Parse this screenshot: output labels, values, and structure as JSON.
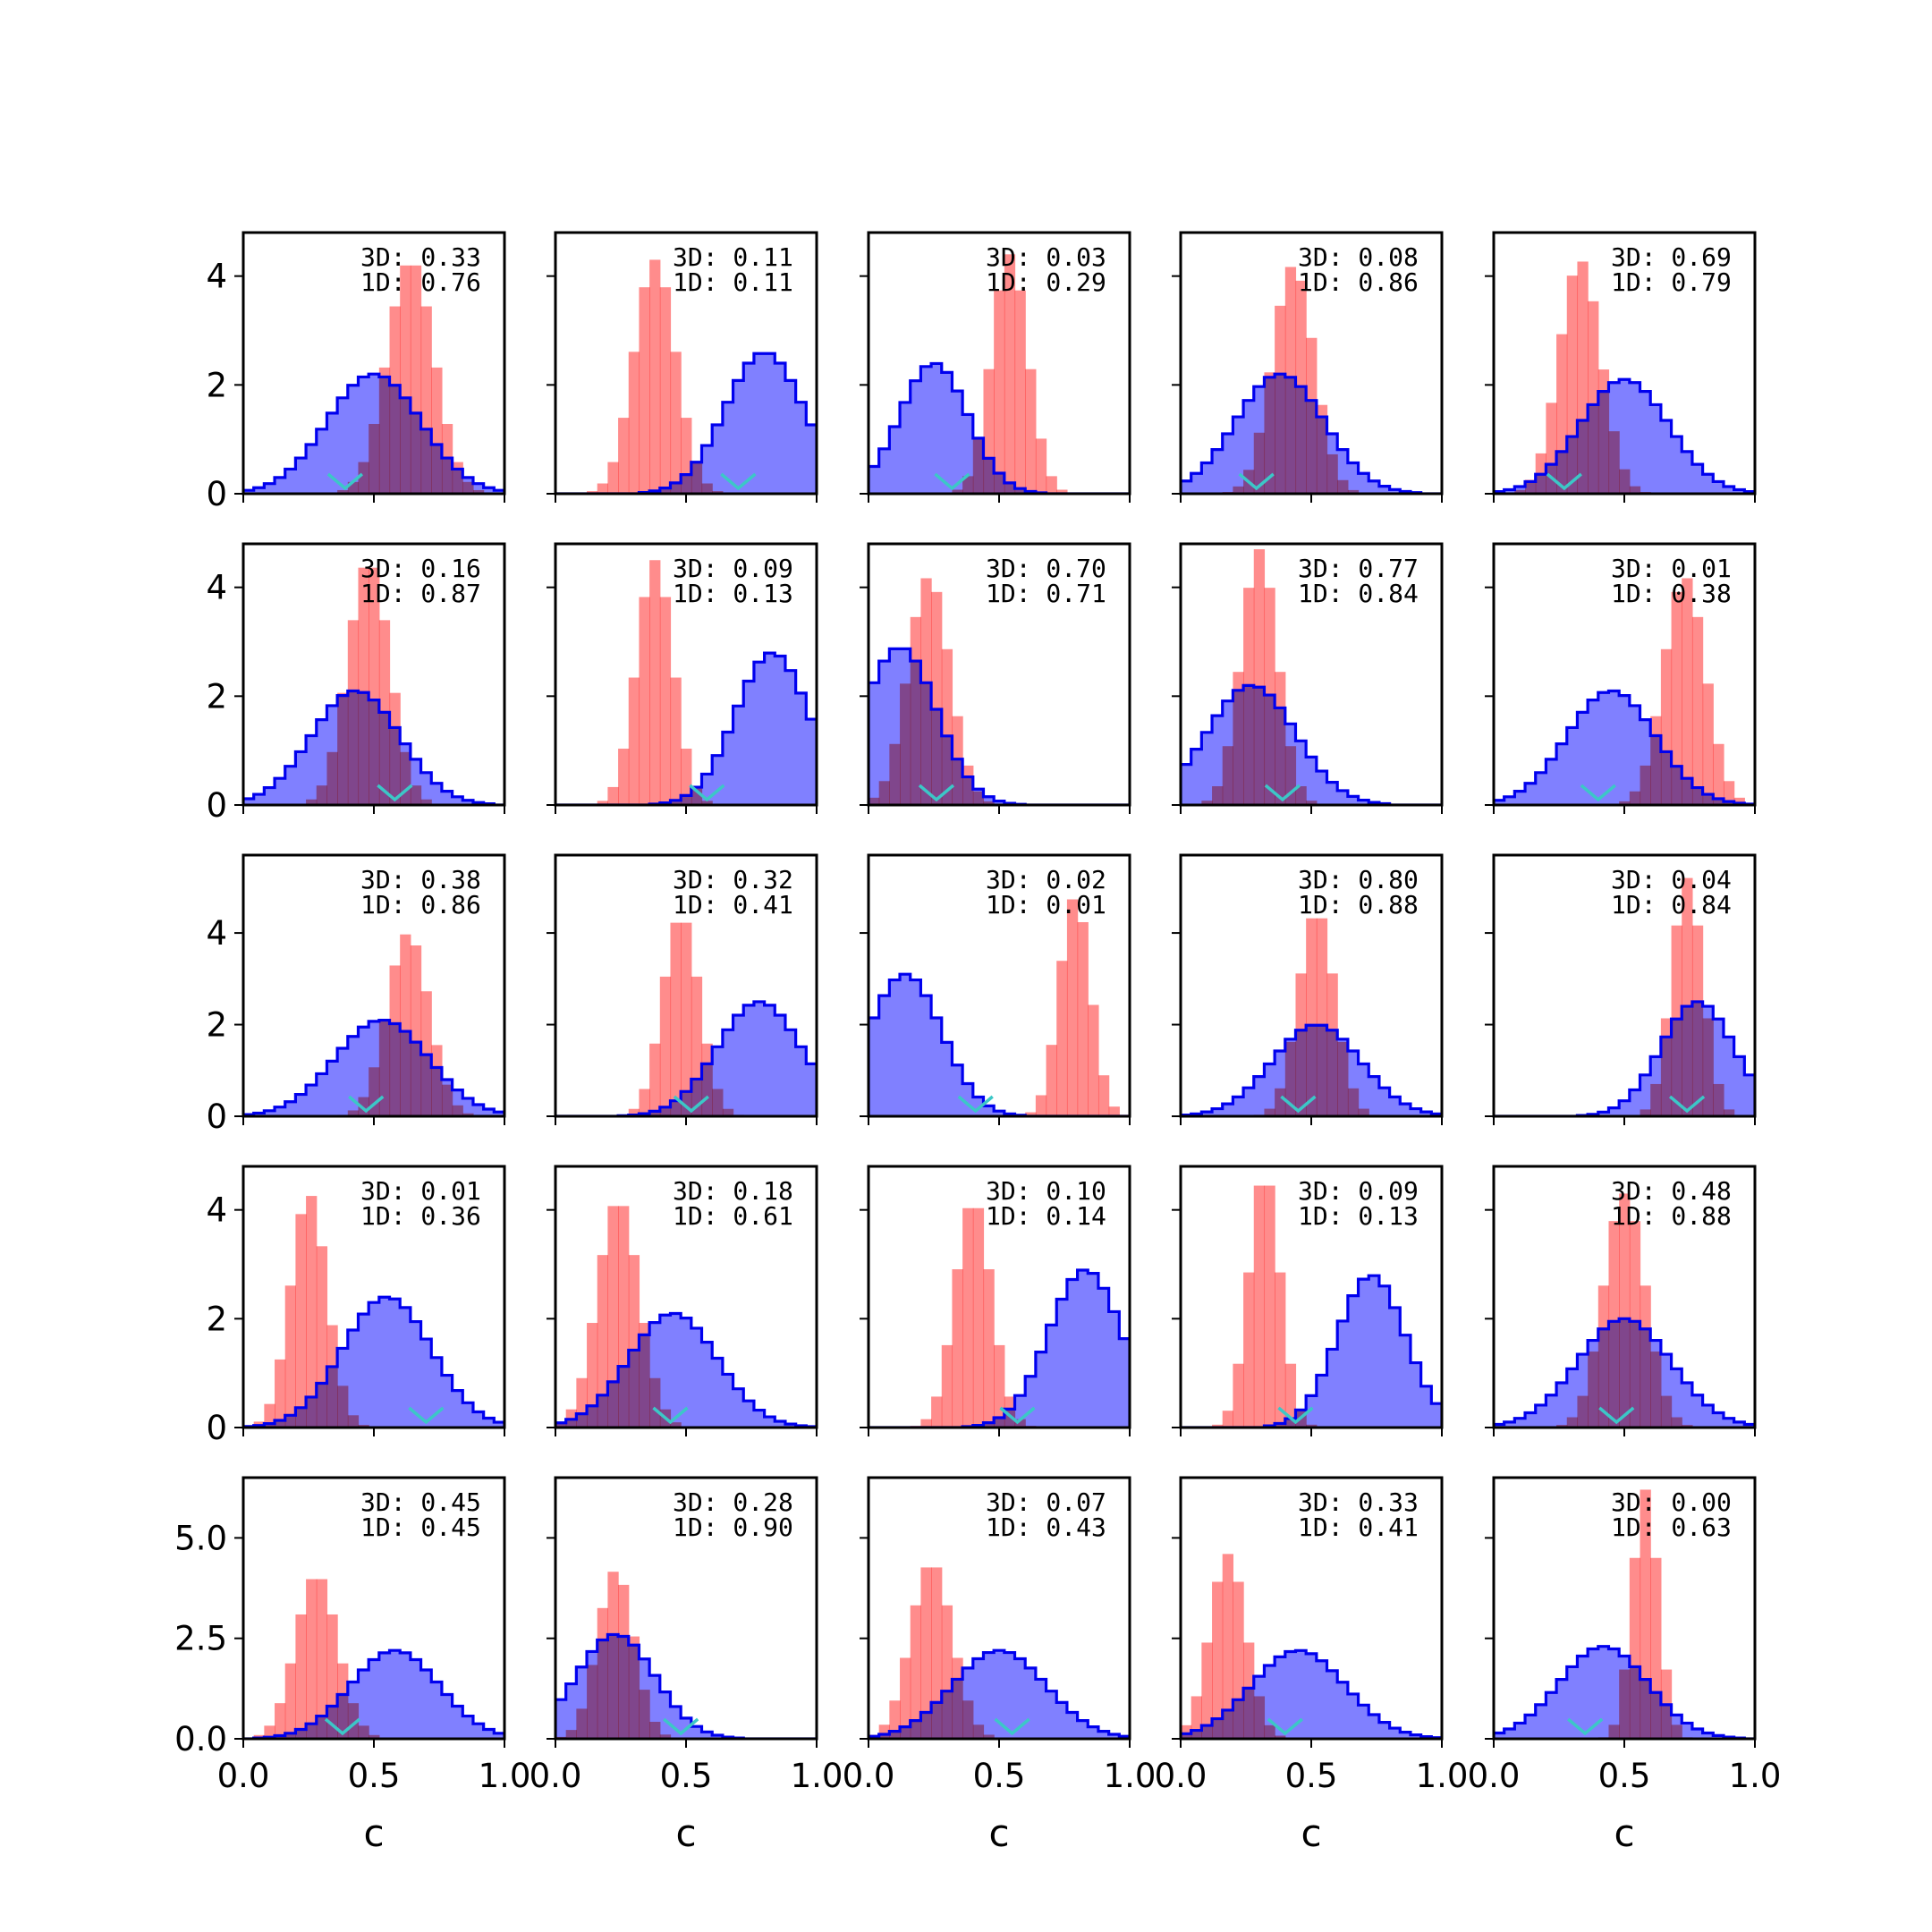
{
  "colors": {
    "blue_fill": "#8080ff",
    "blue_edge": "#0000ee",
    "red_fill": "#ff7f7f",
    "marker": "#3cc7c7",
    "frame": "#000000"
  },
  "chart_data": {
    "type": "histogram-grid",
    "rows": 5,
    "cols": 5,
    "xlabel": "c",
    "xlim": [
      0,
      1
    ],
    "xticks": [
      "0.0",
      "0.5",
      "1.0"
    ],
    "row_axes": [
      {
        "ylim": [
          0,
          4.8
        ],
        "yticks": [
          0,
          2,
          4
        ],
        "ytick_labels": [
          "0",
          "2",
          "4"
        ]
      },
      {
        "ylim": [
          0,
          4.8
        ],
        "yticks": [
          0,
          2,
          4
        ],
        "ytick_labels": [
          "0",
          "2",
          "4"
        ]
      },
      {
        "ylim": [
          0,
          5.7
        ],
        "yticks": [
          0,
          2,
          4
        ],
        "ytick_labels": [
          "0",
          "2",
          "4"
        ]
      },
      {
        "ylim": [
          0,
          4.8
        ],
        "yticks": [
          0,
          2,
          4
        ],
        "ytick_labels": [
          "0",
          "2",
          "4"
        ]
      },
      {
        "ylim": [
          0,
          6.5
        ],
        "yticks": [
          0,
          2.5,
          5.0
        ],
        "ytick_labels": [
          "0.0",
          "2.5",
          "5.0"
        ]
      }
    ],
    "panels": [
      {
        "label3d": "3D: 0.33",
        "label1d": "1D: 0.76",
        "blue": {
          "mu": 0.5,
          "sd": 0.18,
          "peak": 2.2
        },
        "red": {
          "mu": 0.64,
          "sd": 0.09,
          "peak": 4.3
        },
        "marker": 0.39
      },
      {
        "label3d": "3D: 0.11",
        "label1d": "1D: 0.11",
        "blue": {
          "mu": 0.8,
          "sd": 0.15,
          "peak": 2.6
        },
        "red": {
          "mu": 0.38,
          "sd": 0.08,
          "peak": 4.3
        },
        "marker": 0.7
      },
      {
        "label3d": "3D: 0.03",
        "label1d": "1D: 0.29",
        "blue": {
          "mu": 0.25,
          "sd": 0.13,
          "peak": 2.4
        },
        "red": {
          "mu": 0.54,
          "sd": 0.07,
          "peak": 4.4
        },
        "marker": 0.32
      },
      {
        "label3d": "3D: 0.08",
        "label1d": "1D: 0.86",
        "blue": {
          "mu": 0.38,
          "sd": 0.17,
          "peak": 2.2
        },
        "red": {
          "mu": 0.43,
          "sd": 0.08,
          "peak": 4.2
        },
        "marker": 0.29
      },
      {
        "label3d": "3D: 0.69",
        "label1d": "1D: 0.79",
        "blue": {
          "mu": 0.5,
          "sd": 0.17,
          "peak": 2.1
        },
        "red": {
          "mu": 0.33,
          "sd": 0.08,
          "peak": 4.3
        },
        "marker": 0.27
      },
      {
        "label3d": "3D: 0.16",
        "label1d": "1D: 0.87",
        "blue": {
          "mu": 0.43,
          "sd": 0.17,
          "peak": 2.1
        },
        "red": {
          "mu": 0.48,
          "sd": 0.08,
          "peak": 4.5
        },
        "marker": 0.58
      },
      {
        "label3d": "3D: 0.09",
        "label1d": "1D: 0.13",
        "blue": {
          "mu": 0.83,
          "sd": 0.14,
          "peak": 2.8
        },
        "red": {
          "mu": 0.38,
          "sd": 0.07,
          "peak": 4.5
        },
        "marker": 0.58
      },
      {
        "label3d": "3D: 0.70",
        "label1d": "1D: 0.71",
        "blue": {
          "mu": 0.12,
          "sd": 0.14,
          "peak": 2.9
        },
        "red": {
          "mu": 0.23,
          "sd": 0.08,
          "peak": 4.2
        },
        "marker": 0.26
      },
      {
        "label3d": "3D: 0.77",
        "label1d": "1D: 0.84",
        "blue": {
          "mu": 0.27,
          "sd": 0.17,
          "peak": 2.2
        },
        "red": {
          "mu": 0.3,
          "sd": 0.07,
          "peak": 4.7
        },
        "marker": 0.39
      },
      {
        "label3d": "3D: 0.01",
        "label1d": "1D: 0.38",
        "blue": {
          "mu": 0.45,
          "sd": 0.17,
          "peak": 2.1
        },
        "red": {
          "mu": 0.73,
          "sd": 0.08,
          "peak": 4.2
        },
        "marker": 0.4
      },
      {
        "label3d": "3D: 0.38",
        "label1d": "1D: 0.86",
        "blue": {
          "mu": 0.53,
          "sd": 0.18,
          "peak": 2.1
        },
        "red": {
          "mu": 0.63,
          "sd": 0.08,
          "peak": 4.0
        },
        "marker": 0.47
      },
      {
        "label3d": "3D: 0.32",
        "label1d": "1D: 0.41",
        "blue": {
          "mu": 0.78,
          "sd": 0.16,
          "peak": 2.5
        },
        "red": {
          "mu": 0.48,
          "sd": 0.07,
          "peak": 4.4
        },
        "marker": 0.52
      },
      {
        "label3d": "3D: 0.02",
        "label1d": "1D: 0.01",
        "blue": {
          "mu": 0.14,
          "sd": 0.14,
          "peak": 3.1
        },
        "red": {
          "mu": 0.79,
          "sd": 0.06,
          "peak": 4.8
        },
        "marker": 0.41
      },
      {
        "label3d": "3D: 0.80",
        "label1d": "1D: 0.88",
        "blue": {
          "mu": 0.52,
          "sd": 0.17,
          "peak": 2.0
        },
        "red": {
          "mu": 0.52,
          "sd": 0.07,
          "peak": 4.5
        },
        "marker": 0.45
      },
      {
        "label3d": "3D: 0.04",
        "label1d": "1D: 0.84",
        "blue": {
          "mu": 0.78,
          "sd": 0.14,
          "peak": 2.5
        },
        "red": {
          "mu": 0.74,
          "sd": 0.06,
          "peak": 5.2
        },
        "marker": 0.74
      },
      {
        "label3d": "3D: 0.01",
        "label1d": "1D: 0.36",
        "blue": {
          "mu": 0.55,
          "sd": 0.17,
          "peak": 2.4
        },
        "red": {
          "mu": 0.25,
          "sd": 0.07,
          "peak": 4.3
        },
        "marker": 0.7
      },
      {
        "label3d": "3D: 0.18",
        "label1d": "1D: 0.61",
        "blue": {
          "mu": 0.45,
          "sd": 0.17,
          "peak": 2.1
        },
        "red": {
          "mu": 0.24,
          "sd": 0.08,
          "peak": 4.2
        },
        "marker": 0.44
      },
      {
        "label3d": "3D: 0.10",
        "label1d": "1D: 0.14",
        "blue": {
          "mu": 0.83,
          "sd": 0.14,
          "peak": 2.9
        },
        "red": {
          "mu": 0.4,
          "sd": 0.07,
          "peak": 4.2
        },
        "marker": 0.57
      },
      {
        "label3d": "3D: 0.09",
        "label1d": "1D: 0.13",
        "blue": {
          "mu": 0.73,
          "sd": 0.13,
          "peak": 2.8
        },
        "red": {
          "mu": 0.32,
          "sd": 0.06,
          "peak": 4.7
        },
        "marker": 0.44
      },
      {
        "label3d": "3D: 0.48",
        "label1d": "1D: 0.88",
        "blue": {
          "mu": 0.5,
          "sd": 0.18,
          "peak": 2.0
        },
        "red": {
          "mu": 0.5,
          "sd": 0.08,
          "peak": 4.3
        },
        "marker": 0.47
      },
      {
        "label3d": "3D: 0.45",
        "label1d": "1D: 0.45",
        "blue": {
          "mu": 0.58,
          "sd": 0.17,
          "peak": 2.2
        },
        "red": {
          "mu": 0.28,
          "sd": 0.08,
          "peak": 4.1
        },
        "marker": 0.38
      },
      {
        "label3d": "3D: 0.28",
        "label1d": "1D: 0.90",
        "blue": {
          "mu": 0.23,
          "sd": 0.15,
          "peak": 2.6
        },
        "red": {
          "mu": 0.23,
          "sd": 0.07,
          "peak": 4.2
        },
        "marker": 0.48
      },
      {
        "label3d": "3D: 0.07",
        "label1d": "1D: 0.43",
        "blue": {
          "mu": 0.5,
          "sd": 0.18,
          "peak": 2.2
        },
        "red": {
          "mu": 0.24,
          "sd": 0.08,
          "peak": 4.4
        },
        "marker": 0.55
      },
      {
        "label3d": "3D: 0.33",
        "label1d": "1D: 0.41",
        "blue": {
          "mu": 0.45,
          "sd": 0.18,
          "peak": 2.2
        },
        "red": {
          "mu": 0.18,
          "sd": 0.07,
          "peak": 4.6
        },
        "marker": 0.4
      },
      {
        "label3d": "3D: 0.00",
        "label1d": "1D: 0.63",
        "blue": {
          "mu": 0.42,
          "sd": 0.17,
          "peak": 2.3
        },
        "red": {
          "mu": 0.58,
          "sd": 0.05,
          "peak": 6.2
        },
        "marker": 0.35
      }
    ]
  }
}
